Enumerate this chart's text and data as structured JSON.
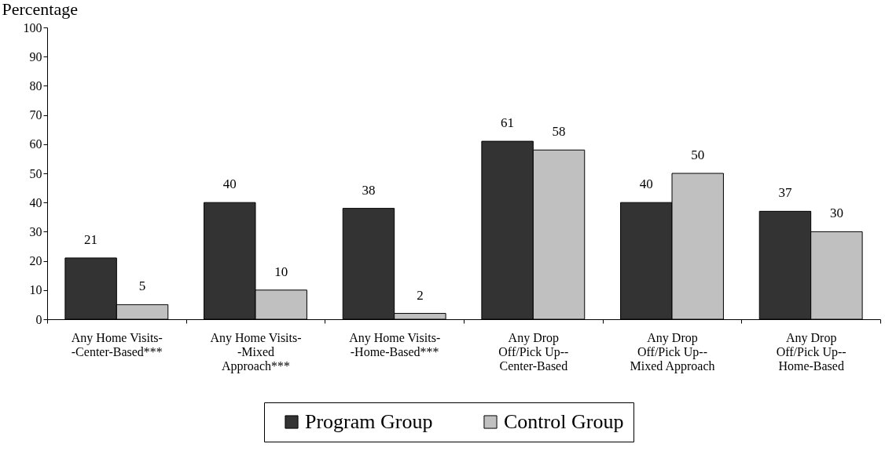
{
  "chart_data": {
    "type": "bar",
    "ylabel": "Percentage",
    "categories": [
      "Any Home Visits-\n-Center-Based***",
      "Any Home Visits-\n-Mixed\nApproach***",
      "Any Home Visits-\n-Home-Based***",
      "Any Drop\nOff/Pick Up--\nCenter-Based",
      "Any Drop\nOff/Pick Up--\nMixed Approach",
      "Any Drop\nOff/Pick Up--\nHome-Based"
    ],
    "series": [
      {
        "name": "Program Group",
        "color": "#333333",
        "values": [
          21,
          40,
          38,
          61,
          40,
          37
        ]
      },
      {
        "name": "Control Group",
        "color": "#c0c0c0",
        "values": [
          5,
          10,
          2,
          58,
          50,
          30
        ]
      }
    ],
    "ylim": [
      0,
      100
    ],
    "yticks": [
      0,
      10,
      20,
      30,
      40,
      50,
      60,
      70,
      80,
      90,
      100
    ],
    "data_labels": true,
    "grid": false,
    "legend": "bottom"
  }
}
